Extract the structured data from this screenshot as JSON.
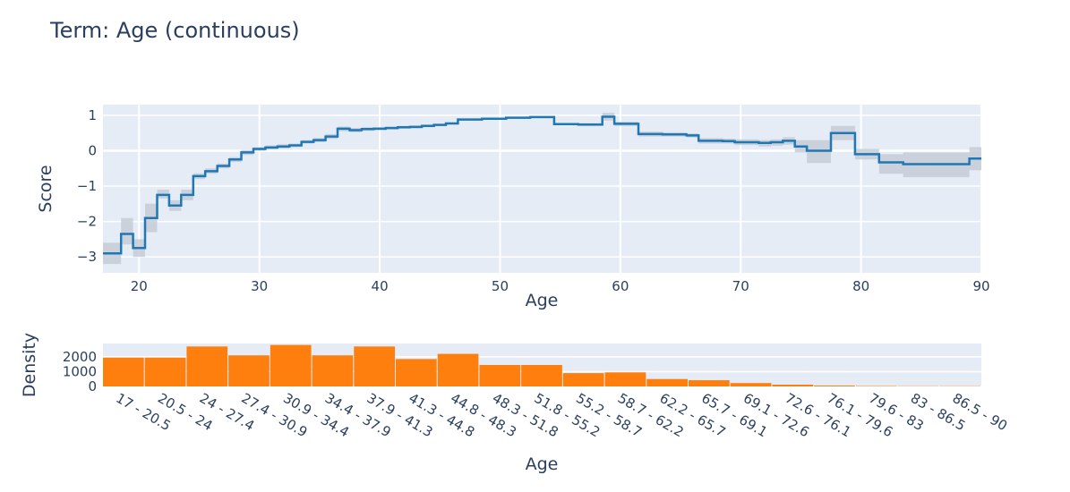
{
  "chart_data": [
    {
      "type": "line",
      "line_shape": "step",
      "title": "Term: Age (continuous)",
      "xlabel": "Age",
      "ylabel": "Score",
      "xlim": [
        17,
        90
      ],
      "ylim": [
        -3.45,
        1.3
      ],
      "xticks": [
        20,
        30,
        40,
        50,
        60,
        70,
        80,
        90
      ],
      "yticks": [
        1,
        0,
        -1,
        -2,
        -3
      ],
      "ytick_labels": [
        "1",
        "0",
        "−1",
        "−2",
        "−3"
      ],
      "grid": true,
      "color": "#1f77b4",
      "band_color": "#c7cdd6",
      "x": [
        17,
        18.5,
        19.5,
        20.5,
        21.5,
        22.5,
        23.5,
        24.5,
        25.5,
        26.5,
        27.5,
        28.5,
        29.5,
        30.5,
        31.5,
        32.5,
        33.5,
        34.5,
        35.5,
        36.5,
        37.5,
        38.5,
        39.5,
        40.5,
        41.5,
        42.5,
        43.5,
        44.5,
        45.5,
        46.5,
        48.5,
        50.5,
        52.5,
        54.5,
        56.5,
        58.5,
        59.5,
        61.5,
        63.5,
        65.5,
        66.5,
        68.5,
        69.5,
        71.5,
        72.5,
        73.5,
        74.5,
        75.5,
        77.5,
        79.5,
        81.5,
        83.5,
        85.5,
        87.5,
        89
      ],
      "score": [
        -2.9,
        -2.35,
        -2.75,
        -1.9,
        -1.25,
        -1.55,
        -1.25,
        -0.72,
        -0.58,
        -0.43,
        -0.25,
        -0.05,
        0.05,
        0.09,
        0.12,
        0.15,
        0.25,
        0.3,
        0.4,
        0.62,
        0.58,
        0.61,
        0.62,
        0.64,
        0.66,
        0.67,
        0.7,
        0.73,
        0.77,
        0.88,
        0.9,
        0.93,
        0.95,
        0.75,
        0.74,
        0.96,
        0.76,
        0.47,
        0.46,
        0.43,
        0.28,
        0.27,
        0.24,
        0.22,
        0.24,
        0.28,
        0.12,
        0.0,
        0.5,
        -0.1,
        -0.33,
        -0.38,
        -0.38,
        -0.38,
        -0.22
      ],
      "lower": [
        -3.2,
        -2.65,
        -3.0,
        -2.3,
        -1.35,
        -1.7,
        -1.4,
        -0.8,
        -0.65,
        -0.5,
        -0.32,
        -0.12,
        0.0,
        0.03,
        0.06,
        0.1,
        0.2,
        0.24,
        0.33,
        0.55,
        0.52,
        0.56,
        0.58,
        0.6,
        0.62,
        0.63,
        0.66,
        0.7,
        0.74,
        0.85,
        0.87,
        0.9,
        0.92,
        0.72,
        0.7,
        0.85,
        0.7,
        0.4,
        0.4,
        0.37,
        0.2,
        0.2,
        0.16,
        0.12,
        0.14,
        0.17,
        -0.05,
        -0.35,
        0.3,
        -0.25,
        -0.65,
        -0.75,
        -0.75,
        -0.75,
        -0.55
      ],
      "upper": [
        -2.6,
        -1.9,
        -2.5,
        -1.5,
        -1.1,
        -1.4,
        -1.1,
        -0.64,
        -0.5,
        -0.36,
        -0.18,
        0.02,
        0.1,
        0.15,
        0.18,
        0.2,
        0.3,
        0.36,
        0.47,
        0.68,
        0.64,
        0.66,
        0.66,
        0.68,
        0.7,
        0.71,
        0.74,
        0.76,
        0.8,
        0.91,
        0.93,
        0.96,
        0.98,
        0.78,
        0.78,
        1.07,
        0.82,
        0.54,
        0.52,
        0.49,
        0.36,
        0.34,
        0.32,
        0.3,
        0.32,
        0.38,
        0.3,
        0.3,
        0.7,
        0.05,
        -0.1,
        -0.05,
        -0.05,
        -0.05,
        0.1
      ]
    },
    {
      "type": "bar",
      "xlabel": "Age",
      "ylabel": "Density",
      "ylim": [
        0,
        2900
      ],
      "yticks": [
        0,
        1000,
        2000
      ],
      "ytick_labels": [
        "0",
        "1000",
        "2000"
      ],
      "color": "#ff7f0e",
      "categories": [
        "17 - 20.5",
        "20.5 - 24",
        "24 - 27.4",
        "27.4 - 30.9",
        "30.9 - 34.4",
        "34.4 - 37.9",
        "37.9 - 41.3",
        "41.3 - 44.8",
        "44.8 - 48.3",
        "48.3 - 51.8",
        "51.8 - 55.2",
        "55.2 - 58.7",
        "58.7 - 62.2",
        "62.2 - 65.7",
        "65.7 - 69.1",
        "69.1 - 72.6",
        "72.6 - 76.1",
        "76.1 - 79.6",
        "79.6 - 83",
        "83 - 86.5",
        "86.5 - 90"
      ],
      "values": [
        1950,
        1950,
        2700,
        2100,
        2800,
        2100,
        2700,
        1850,
        2200,
        1450,
        1450,
        900,
        950,
        500,
        420,
        230,
        120,
        60,
        30,
        20,
        20
      ]
    }
  ]
}
